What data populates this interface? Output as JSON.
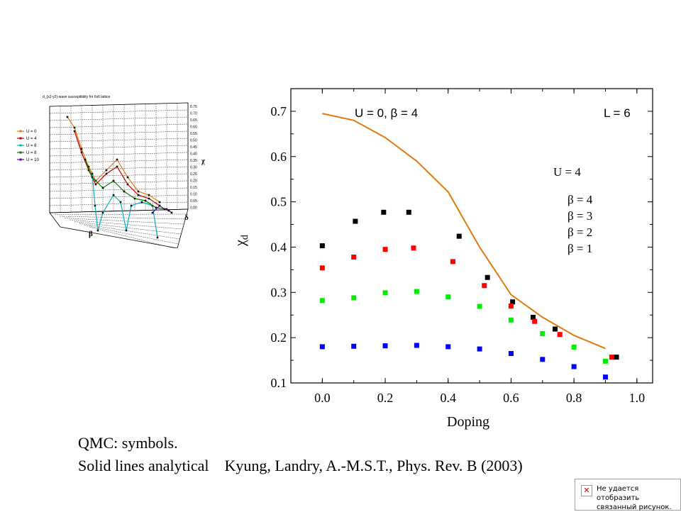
{
  "chart_data": [
    {
      "type": "scatter",
      "title": "U = 0,     β = 4",
      "corner_label": "L = 6",
      "xlabel": "Doping",
      "ylabel": "χd",
      "xlim": [
        -0.1,
        1.05
      ],
      "ylim": [
        0.1,
        0.75
      ],
      "xticks": [
        0.0,
        0.2,
        0.4,
        0.6,
        0.8,
        1.0
      ],
      "xtick_labels": [
        "0.0",
        "0.2",
        "0.4",
        "0.6",
        "0.8",
        "1.0"
      ],
      "yticks": [
        0.1,
        0.2,
        0.3,
        0.4,
        0.5,
        0.6,
        0.7
      ],
      "ytick_labels": [
        "0.1",
        "0.2",
        "0.3",
        "0.4",
        "0.5",
        "0.6",
        "0.7"
      ],
      "legend_title": "U = 4",
      "legend_position": "right",
      "series": [
        {
          "name": "β = 4",
          "color": "#000000",
          "x": [
            0.0,
            0.105,
            0.195,
            0.275,
            0.435,
            0.525,
            0.605,
            0.67,
            0.74,
            0.935
          ],
          "y": [
            0.403,
            0.457,
            0.477,
            0.477,
            0.424,
            0.333,
            0.279,
            0.245,
            0.219,
            0.157
          ]
        },
        {
          "name": "β = 3",
          "color": "#ff0000",
          "x": [
            0.0,
            0.1,
            0.2,
            0.29,
            0.415,
            0.515,
            0.6,
            0.675,
            0.755,
            0.92
          ],
          "y": [
            0.354,
            0.378,
            0.395,
            0.398,
            0.368,
            0.315,
            0.27,
            0.236,
            0.207,
            0.157
          ]
        },
        {
          "name": "β = 2",
          "color": "#00ee00",
          "x": [
            0.0,
            0.1,
            0.2,
            0.3,
            0.4,
            0.5,
            0.6,
            0.7,
            0.8,
            0.9
          ],
          "y": [
            0.282,
            0.288,
            0.299,
            0.302,
            0.29,
            0.269,
            0.239,
            0.209,
            0.179,
            0.148
          ]
        },
        {
          "name": "β = 1",
          "color": "#0000ff",
          "x": [
            0.0,
            0.1,
            0.2,
            0.3,
            0.4,
            0.5,
            0.6,
            0.7,
            0.8,
            0.9
          ],
          "y": [
            0.18,
            0.181,
            0.182,
            0.183,
            0.18,
            0.175,
            0.165,
            0.152,
            0.136,
            0.113
          ]
        }
      ],
      "line": {
        "color": "#e07b10",
        "x": [
          0.0,
          0.1,
          0.2,
          0.3,
          0.4,
          0.5,
          0.6,
          0.7,
          0.8,
          0.9
        ],
        "y": [
          0.695,
          0.68,
          0.642,
          0.59,
          0.522,
          0.4,
          0.295,
          0.245,
          0.205,
          0.176
        ]
      }
    },
    {
      "type": "line",
      "title": "d_{x2-y2}-wave susceptibility for 6x6 lattice",
      "xlabel": "β",
      "ylabel": "χ",
      "zlabel": "δ",
      "legend": [
        "U = 0",
        "U = 4",
        "U = 6",
        "U = 8",
        "U = 10"
      ],
      "legend_colors": [
        "#e07b10",
        "#c00000",
        "#00b0c0",
        "#008000",
        "#6000a0"
      ],
      "ztick_labels": [
        "0.75",
        "0.70",
        "0.65",
        "0.60",
        "0.55",
        "0.50",
        "0.45",
        "0.40",
        "0.35",
        "0.30",
        "0.25",
        "0.20",
        "0.15",
        "0.10",
        "0.05",
        "0.00"
      ]
    }
  ],
  "captions": {
    "line1": "QMC: symbols.",
    "line2": "Solid lines analytical    Kyung, Landry, A.-M.S.T., Phys. Rev. B (2003)"
  },
  "broken_image": {
    "text": "Не удается отобразить связанный рисунок."
  }
}
